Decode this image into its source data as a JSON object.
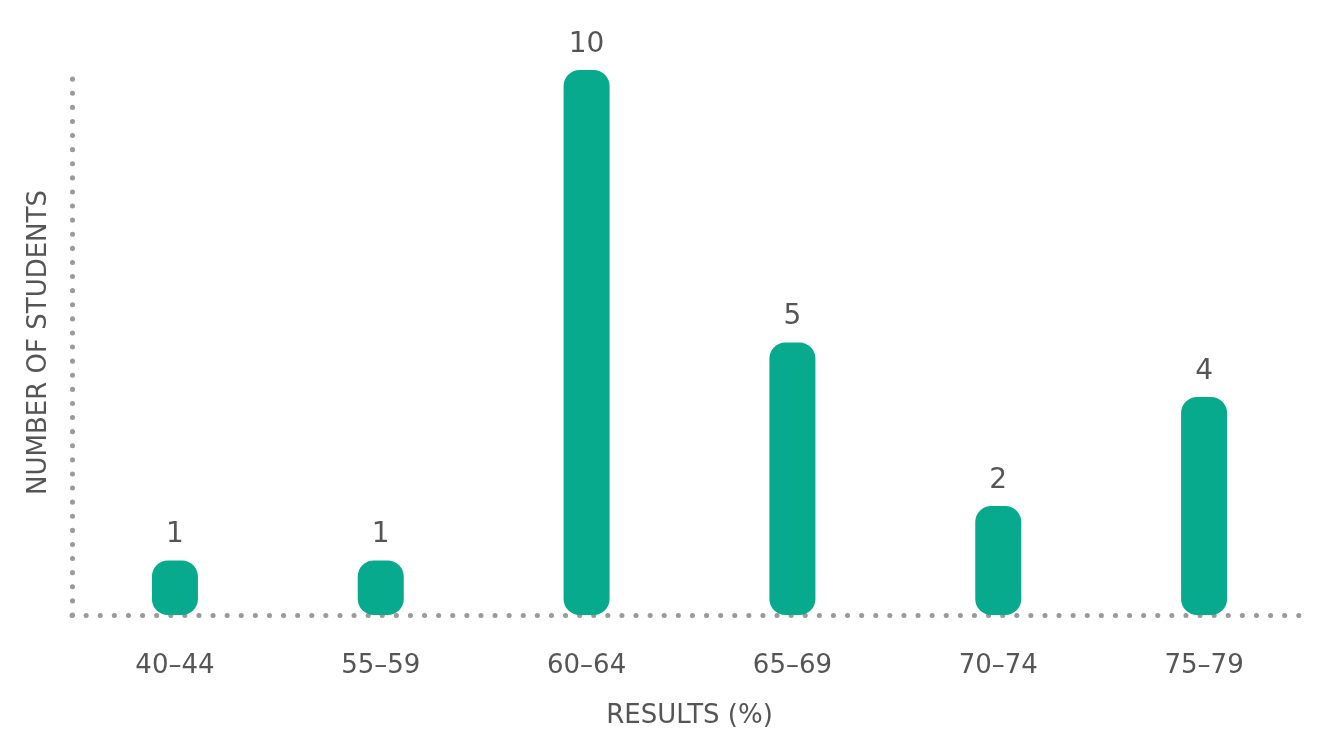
{
  "chart_data": {
    "type": "bar",
    "xlabel": "RESULTS (%)",
    "ylabel": "NUMBER OF STUDENTS",
    "categories": [
      "40–44",
      "55–59",
      "60–64",
      "65–69",
      "70–74",
      "75–79"
    ],
    "values": [
      1,
      1,
      10,
      5,
      2,
      4
    ],
    "color": "#07aa8c",
    "data_labels": true,
    "tick_labels": "x",
    "grid": false
  }
}
